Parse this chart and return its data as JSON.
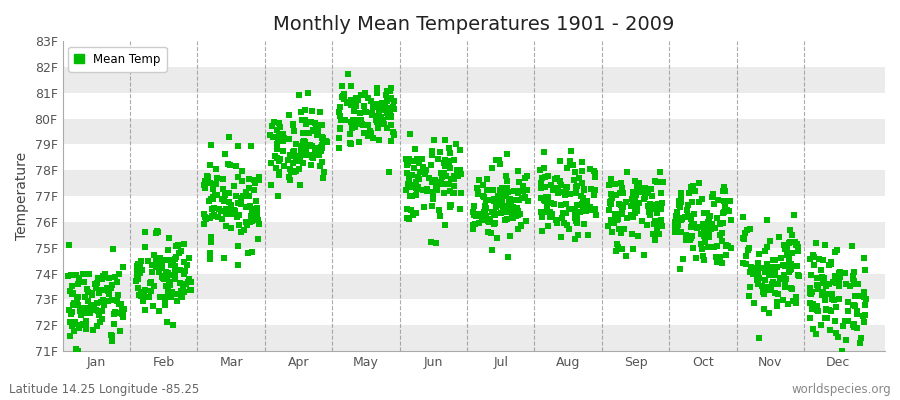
{
  "title": "Monthly Mean Temperatures 1901 - 2009",
  "ylabel": "Temperature",
  "ylim": [
    71,
    83
  ],
  "yticks": [
    71,
    72,
    73,
    74,
    75,
    76,
    77,
    78,
    79,
    80,
    81,
    82,
    83
  ],
  "ytick_labels": [
    "71F",
    "72F",
    "73F",
    "74F",
    "75F",
    "76F",
    "77F",
    "78F",
    "79F",
    "80F",
    "81F",
    "82F",
    "83F"
  ],
  "months": [
    "Jan",
    "Feb",
    "Mar",
    "Apr",
    "May",
    "Jun",
    "Jul",
    "Aug",
    "Sep",
    "Oct",
    "Nov",
    "Dec"
  ],
  "month_means": [
    72.8,
    73.8,
    76.8,
    79.0,
    80.2,
    77.5,
    76.8,
    76.8,
    76.5,
    76.0,
    74.2,
    73.2
  ],
  "month_stds": [
    0.85,
    0.85,
    0.9,
    0.75,
    0.65,
    0.8,
    0.75,
    0.75,
    0.8,
    0.85,
    0.95,
    0.95
  ],
  "n_years": 109,
  "dot_color": "#00bb00",
  "marker_size": 4,
  "background_color": "#ffffff",
  "stripe_light": "#ffffff",
  "stripe_dark": "#ebebeb",
  "grid_color": "#888888",
  "title_fontsize": 14,
  "legend_label": "Mean Temp",
  "subtitle_left": "Latitude 14.25 Longitude -85.25",
  "subtitle_right": "worldspecies.org",
  "subtitle_fontsize": 8.5,
  "xlim_left": 0.5,
  "xlim_right": 12.7
}
